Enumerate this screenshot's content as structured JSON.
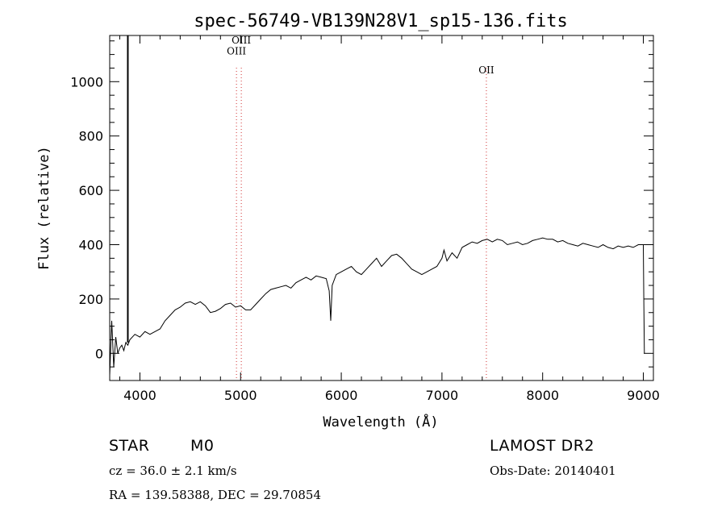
{
  "chart_data": {
    "type": "line",
    "title": "spec-56749-VB139N28V1_sp15-136.fits",
    "xlabel": "Wavelength (Å)",
    "ylabel": "Flux (relative)",
    "xlim": [
      3700,
      9100
    ],
    "ylim": [
      -100,
      1170
    ],
    "x_ticks": [
      4000,
      5000,
      6000,
      7000,
      8000,
      9000
    ],
    "y_ticks": [
      0,
      200,
      400,
      600,
      800,
      1000
    ],
    "grid": false,
    "series": [
      {
        "x": [
          3700,
          3720,
          3740,
          3760,
          3780,
          3800,
          3820,
          3840,
          3860,
          3880,
          3900,
          3950,
          4000,
          4050,
          4100,
          4150,
          4200,
          4250,
          4300,
          4350,
          4400,
          4450,
          4500,
          4550,
          4600,
          4650,
          4700,
          4750,
          4800,
          4850,
          4900,
          4950,
          5000,
          5050,
          5100,
          5150,
          5200,
          5250,
          5300,
          5350,
          5400,
          5450,
          5500,
          5550,
          5600,
          5650,
          5700,
          5750,
          5800,
          5850,
          5880,
          5895,
          5910,
          5950,
          6000,
          6050,
          6100,
          6150,
          6200,
          6250,
          6300,
          6350,
          6400,
          6450,
          6500,
          6550,
          6600,
          6650,
          6700,
          6750,
          6800,
          6850,
          6900,
          6950,
          7000,
          7020,
          7050,
          7100,
          7150,
          7200,
          7250,
          7300,
          7350,
          7400,
          7450,
          7500,
          7550,
          7600,
          7650,
          7700,
          7750,
          7800,
          7850,
          7900,
          7950,
          8000,
          8050,
          8100,
          8150,
          8200,
          8250,
          8300,
          8350,
          8400,
          8450,
          8500,
          8550,
          8600,
          8650,
          8700,
          8750,
          8800,
          8850,
          8900,
          8950,
          9000,
          9005,
          9010
        ],
        "y": [
          -80,
          120,
          -50,
          60,
          0,
          20,
          30,
          10,
          40,
          30,
          50,
          70,
          60,
          80,
          70,
          80,
          90,
          120,
          140,
          160,
          170,
          185,
          190,
          180,
          190,
          175,
          150,
          155,
          165,
          180,
          185,
          170,
          175,
          160,
          160,
          180,
          200,
          220,
          235,
          240,
          245,
          250,
          240,
          260,
          270,
          280,
          270,
          285,
          280,
          275,
          230,
          120,
          250,
          290,
          300,
          310,
          320,
          300,
          290,
          310,
          330,
          350,
          320,
          340,
          360,
          365,
          350,
          330,
          310,
          300,
          290,
          300,
          310,
          320,
          350,
          380,
          340,
          370,
          350,
          390,
          400,
          410,
          405,
          415,
          420,
          410,
          420,
          415,
          400,
          405,
          410,
          400,
          405,
          415,
          420,
          425,
          420,
          420,
          410,
          415,
          405,
          400,
          395,
          405,
          400,
          395,
          390,
          400,
          390,
          385,
          395,
          390,
          395,
          390,
          400,
          400,
          200,
          0
        ]
      }
    ],
    "spike": {
      "x": 3880,
      "y_min": 40,
      "y_max": 1170
    },
    "lines": [
      {
        "label": "OIII",
        "x": 4959,
        "y_label": 1100
      },
      {
        "label": "OIII",
        "x": 5007,
        "y_label": 1140
      },
      {
        "label": "OII",
        "x": 7441,
        "y_label": 1030
      }
    ]
  },
  "info": {
    "object_class": "STAR",
    "subclass": "M0",
    "survey": "LAMOST DR2",
    "cz": "cz = 36.0 ± 2.1 km/s",
    "obs_date": "Obs-Date: 20140401",
    "coords": "RA = 139.58388, DEC =  29.70854"
  }
}
